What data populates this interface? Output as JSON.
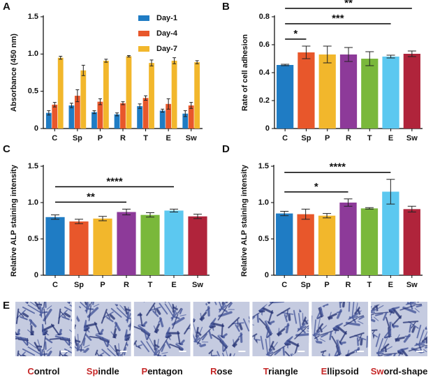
{
  "chart_data": [
    {
      "type": "bar",
      "panel": "A",
      "ylabel": "Absorbance (450 nm)",
      "categories": [
        "C",
        "Sp",
        "P",
        "R",
        "T",
        "E",
        "Sw"
      ],
      "series": [
        {
          "name": "Day-1",
          "color": "#1f7cc4",
          "values": [
            0.21,
            0.31,
            0.22,
            0.19,
            0.3,
            0.24,
            0.2
          ],
          "errors": [
            0.03,
            0.03,
            0.02,
            0.02,
            0.03,
            0.02,
            0.04
          ]
        },
        {
          "name": "Day-4",
          "color": "#e8572b",
          "values": [
            0.32,
            0.44,
            0.36,
            0.34,
            0.41,
            0.33,
            0.31
          ],
          "errors": [
            0.03,
            0.08,
            0.04,
            0.02,
            0.03,
            0.07,
            0.04
          ]
        },
        {
          "name": "Day-7",
          "color": "#f2b72c",
          "values": [
            0.95,
            0.78,
            0.91,
            0.97,
            0.88,
            0.91,
            0.89
          ],
          "errors": [
            0.02,
            0.07,
            0.02,
            0.01,
            0.04,
            0.04,
            0.02
          ]
        }
      ],
      "ylim": [
        0,
        1.5
      ],
      "yticks": [
        0,
        0.5,
        {
          "value": 1,
          "label": "1.0"
        },
        1.5
      ],
      "legend": "upper right"
    },
    {
      "type": "bar",
      "panel": "B",
      "ylabel": "Rate of cell adhesion",
      "categories": [
        "C",
        "Sp",
        "P",
        "R",
        "T",
        "E",
        "Sw"
      ],
      "values": [
        0.455,
        0.545,
        0.53,
        0.53,
        0.5,
        0.515,
        0.535
      ],
      "errors": [
        0.005,
        0.045,
        0.06,
        0.05,
        0.05,
        0.01,
        0.02
      ],
      "colors": [
        "#1f7cc4",
        "#e8572b",
        "#f2b72c",
        "#8d3a99",
        "#7ab83b",
        "#5cc8f0",
        "#b0243b"
      ],
      "ylim": [
        0,
        0.8
      ],
      "yticks": [
        0,
        0.2,
        0.4,
        0.6,
        0.8
      ],
      "significance": [
        {
          "from": "C",
          "to": "Sp",
          "label": "*"
        },
        {
          "from": "C",
          "to": "E",
          "label": "***"
        },
        {
          "from": "C",
          "to": "Sw",
          "label": "**"
        }
      ]
    },
    {
      "type": "bar",
      "panel": "C",
      "ylabel": "Relative ALP staining intensity",
      "categories": [
        "C",
        "Sp",
        "P",
        "R",
        "T",
        "E",
        "Sw"
      ],
      "values": [
        0.8,
        0.74,
        0.78,
        0.87,
        0.83,
        0.89,
        0.81
      ],
      "errors": [
        0.03,
        0.03,
        0.03,
        0.04,
        0.03,
        0.02,
        0.03
      ],
      "colors": [
        "#1f7cc4",
        "#e8572b",
        "#f2b72c",
        "#8d3a99",
        "#7ab83b",
        "#5cc8f0",
        "#b0243b"
      ],
      "ylim": [
        0,
        1.5
      ],
      "yticks": [
        0,
        0.5,
        {
          "value": 1,
          "label": "1.0"
        },
        1.5
      ],
      "significance": [
        {
          "from": "C",
          "to": "R",
          "label": "**"
        },
        {
          "from": "C",
          "to": "E",
          "label": "****"
        }
      ]
    },
    {
      "type": "bar",
      "panel": "D",
      "ylabel": "Relative ALP staining intensity",
      "categories": [
        "C",
        "Sp",
        "P",
        "R",
        "T",
        "E",
        "Sw"
      ],
      "values": [
        0.85,
        0.84,
        0.82,
        1.0,
        0.92,
        1.15,
        0.91
      ],
      "errors": [
        0.03,
        0.07,
        0.03,
        0.05,
        0.01,
        0.17,
        0.04
      ],
      "colors": [
        "#1f7cc4",
        "#e8572b",
        "#f2b72c",
        "#8d3a99",
        "#7ab83b",
        "#5cc8f0",
        "#b0243b"
      ],
      "ylim": [
        0,
        1.5
      ],
      "yticks": [
        0,
        0.5,
        {
          "value": 1,
          "label": "1.0"
        },
        1.5
      ],
      "significance": [
        {
          "from": "C",
          "to": "R",
          "label": "*"
        },
        {
          "from": "C",
          "to": "E",
          "label": "****"
        }
      ]
    }
  ],
  "panel_e": {
    "panel": "E",
    "captions": [
      {
        "lead": "C",
        "rest": "ontrol"
      },
      {
        "lead": "Sp",
        "rest": "indle"
      },
      {
        "lead": "P",
        "rest": "entagon"
      },
      {
        "lead": "R",
        "rest": "ose"
      },
      {
        "lead": "T",
        "rest": "riangle"
      },
      {
        "lead": "E",
        "rest": "llipsoid"
      },
      {
        "lead": "Sw",
        "rest": "ord-shape"
      }
    ]
  }
}
